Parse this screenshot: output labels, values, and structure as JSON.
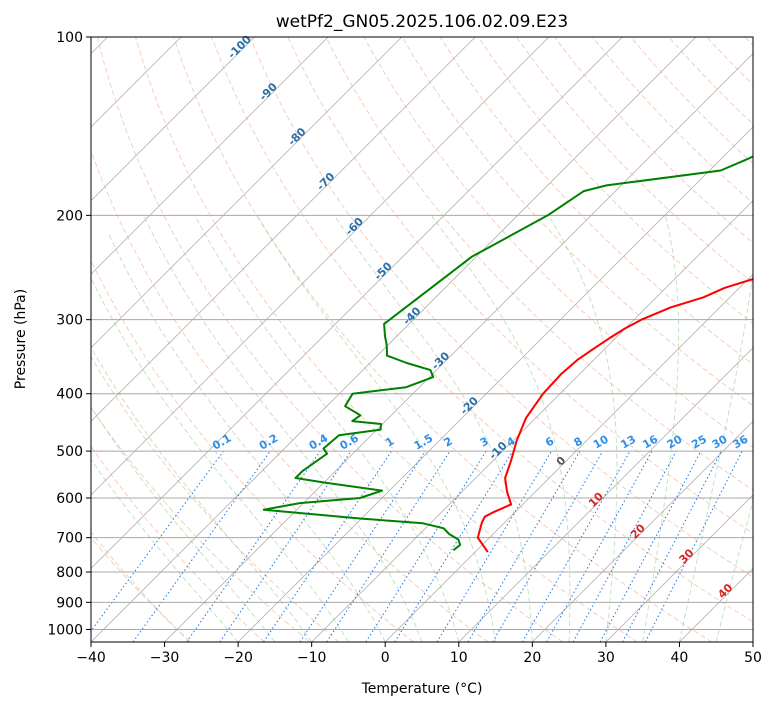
{
  "chart_data": {
    "type": "line",
    "title": "wetPf2_GN05.2025.106.02.09.E23",
    "xlabel": "Temperature (°C)",
    "ylabel": "Pressure (hPa)",
    "xlim": [
      -40,
      50
    ],
    "ylim": [
      1050,
      100
    ],
    "y_scale": "log",
    "x_ticks": [
      -40,
      -30,
      -20,
      -10,
      0,
      10,
      20,
      30,
      40,
      50
    ],
    "x_tick_labels": [
      "−40",
      "−30",
      "−20",
      "−10",
      "0",
      "10",
      "20",
      "30",
      "40",
      "50"
    ],
    "y_ticks": [
      1000,
      900,
      800,
      700,
      600,
      500,
      400,
      300,
      200,
      100
    ],
    "y_tick_labels": [
      "1000",
      "900",
      "800",
      "700",
      "600",
      "500",
      "400",
      "300",
      "200",
      "100"
    ],
    "skew_degrees": 45,
    "grid": true,
    "dry_adiabat_labels": [
      "-100",
      "-90",
      "-80",
      "-70",
      "-60",
      "-50",
      "-40",
      "-30",
      "-20",
      "-10"
    ],
    "dry_adiabat_label_values": [
      -100,
      -90,
      -80,
      -70,
      -60,
      -50,
      -40,
      -30,
      -20,
      -10
    ],
    "moist_adiabat_labels": [
      "0",
      "10",
      "20",
      "30",
      "40"
    ],
    "moist_adiabat_label_values": [
      0,
      10,
      20,
      30,
      40
    ],
    "mixing_ratio_labels": [
      "0.1",
      "0.2",
      "0.4",
      "0.6",
      "1",
      "1.5",
      "2",
      "3",
      "4",
      "6",
      "8",
      "10",
      "13",
      "16",
      "20",
      "25",
      "30",
      "36"
    ],
    "mixing_ratio_values": [
      0.1,
      0.2,
      0.4,
      0.6,
      1,
      1.5,
      2,
      3,
      4,
      6,
      8,
      10,
      13,
      16,
      20,
      25,
      30,
      36
    ],
    "series": [
      {
        "color": "#ff0000",
        "points": [
          [
            1.7,
            740
          ],
          [
            -1.6,
            700
          ],
          [
            -3.1,
            660
          ],
          [
            -3.5,
            645
          ],
          [
            -3.0,
            635
          ],
          [
            -1.6,
            615
          ],
          [
            -3.9,
            585
          ],
          [
            -6.0,
            555
          ],
          [
            -7.5,
            520
          ],
          [
            -9.5,
            480
          ],
          [
            -11.3,
            440
          ],
          [
            -12.3,
            400
          ],
          [
            -12.5,
            370
          ],
          [
            -12.2,
            350
          ],
          [
            -11.5,
            335
          ],
          [
            -10.8,
            322
          ],
          [
            -10.0,
            310
          ],
          [
            -9.0,
            300
          ],
          [
            -6.7,
            286
          ],
          [
            -3.6,
            275
          ],
          [
            -2.0,
            265
          ],
          [
            1.0,
            255
          ],
          [
            3.5,
            245
          ],
          [
            5.0,
            234
          ],
          [
            6.0,
            225
          ],
          [
            7.2,
            212
          ],
          [
            8.8,
            203
          ],
          [
            10.5,
            195
          ],
          [
            14.8,
            180
          ],
          [
            16.5,
            172
          ],
          [
            19.2,
            162
          ],
          [
            21.5,
            152
          ],
          [
            24.0,
            140
          ],
          [
            26.0,
            131
          ],
          [
            28.0,
            120
          ],
          [
            30.5,
            110
          ],
          [
            32.5,
            102
          ]
        ]
      },
      {
        "color": "#008000",
        "points": [
          [
            -3.2,
            735
          ],
          [
            -3.0,
            720
          ],
          [
            -4.0,
            705
          ],
          [
            -6.0,
            690
          ],
          [
            -7.5,
            675
          ],
          [
            -11.0,
            662
          ],
          [
            -20.0,
            650
          ],
          [
            -34.5,
            628
          ],
          [
            -30.5,
            612
          ],
          [
            -23.0,
            600
          ],
          [
            -21.0,
            583
          ],
          [
            -30.0,
            565
          ],
          [
            -34.5,
            555
          ],
          [
            -34.5,
            540
          ],
          [
            -33.5,
            505
          ],
          [
            -34.7,
            495
          ],
          [
            -34.4,
            470
          ],
          [
            -29.5,
            460
          ],
          [
            -30.2,
            450
          ],
          [
            -34.5,
            445
          ],
          [
            -34.2,
            435
          ],
          [
            -37.5,
            420
          ],
          [
            -38.2,
            400
          ],
          [
            -31.8,
            390
          ],
          [
            -29.5,
            375
          ],
          [
            -30.8,
            365
          ],
          [
            -35.0,
            355
          ],
          [
            -38.7,
            345
          ],
          [
            -39.3,
            339
          ],
          [
            -40.3,
            330
          ],
          [
            -41.6,
            320
          ],
          [
            -43.4,
            305
          ],
          [
            -40.6,
            235
          ],
          [
            -35.9,
            200
          ],
          [
            -34.3,
            182
          ],
          [
            -32.0,
            178
          ],
          [
            -18.5,
            168
          ],
          [
            -16.2,
            160
          ],
          [
            -14.0,
            150
          ],
          [
            -12.8,
            140
          ],
          [
            -11.5,
            131
          ],
          [
            -8.7,
            124
          ],
          [
            -5.2,
            115
          ],
          [
            -2.2,
            105
          ],
          [
            -1.0,
            101
          ]
        ]
      }
    ]
  }
}
